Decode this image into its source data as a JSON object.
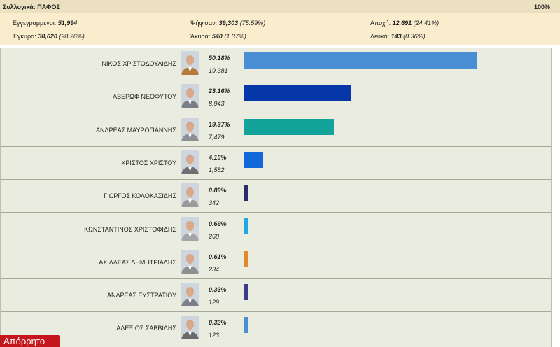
{
  "header": {
    "title": "Συλλογικά: ΠΑΦΟΣ",
    "percent": "100%"
  },
  "stats": {
    "registered_label": "Εγγεγραμμένοι:",
    "registered_value": "51,994",
    "voted_label": "Ψήφισαν:",
    "voted_value": "39,303",
    "voted_pct": "(75.59%)",
    "abstention_label": "Αποχή:",
    "abstention_value": "12,691",
    "abstention_pct": "(24.41%)",
    "valid_label": "Έγκυρα:",
    "valid_value": "38,620",
    "valid_pct": "(98.26%)",
    "invalid_label": "Άκυρα:",
    "invalid_value": "540",
    "invalid_pct": "(1.37%)",
    "blank_label": "Λευκά:",
    "blank_value": "143",
    "blank_pct": "(0.36%)"
  },
  "candidates": [
    {
      "name": "ΝΙΚΟΣ ΧΡΙΣΤΟΔΟΥΛΙΔΗΣ",
      "pct": "50.18%",
      "votes": "19,381",
      "share": 50.18,
      "color": "#4a8fd4",
      "photo_bg": "#b37a3a",
      "icon": "candidate-photo"
    },
    {
      "name": "ΑΒΕΡΩΦ ΝΕΟΦΥΤΟΥ",
      "pct": "23.16%",
      "votes": "8,943",
      "share": 23.16,
      "color": "#0637a8",
      "photo_bg": "#7a7f86",
      "icon": "candidate-photo"
    },
    {
      "name": "ΑΝΔΡΕΑΣ ΜΑΥΡΟΓΙΑΝΝΗΣ",
      "pct": "19.37%",
      "votes": "7,479",
      "share": 19.37,
      "color": "#13a39a",
      "photo_bg": "#8a8f95",
      "icon": "candidate-photo"
    },
    {
      "name": "ΧΡΙΣΤΟΣ ΧΡΙΣΤΟΥ",
      "pct": "4.10%",
      "votes": "1,582",
      "share": 4.1,
      "color": "#1168d8",
      "photo_bg": "#6d6f73",
      "icon": "candidate-photo"
    },
    {
      "name": "ΓΙΩΡΓΟΣ ΚΟΛΟΚΑΣΙΔΗΣ",
      "pct": "0.89%",
      "votes": "342",
      "share": 0.89,
      "color": "#2b2b6e",
      "photo_bg": "#9a9a9a",
      "icon": "candidate-photo"
    },
    {
      "name": "ΚΩΝΣΤΑΝΤΙΝΟΣ ΧΡΙΣΤΟΦΙΔΗΣ",
      "pct": "0.69%",
      "votes": "268",
      "share": 0.69,
      "color": "#1fa8e8",
      "photo_bg": "#a5a5a5",
      "icon": "candidate-photo"
    },
    {
      "name": "ΑΧΙΛΛΕΑΣ ΔΗΜΗΤΡΙΑΔΗΣ",
      "pct": "0.61%",
      "votes": "234",
      "share": 0.61,
      "color": "#e08a2a",
      "photo_bg": "#8f8f8f",
      "icon": "candidate-photo"
    },
    {
      "name": "ΑΝΔΡΕΑΣ ΕΥΣΤΡΑΤΙΟΥ",
      "pct": "0.33%",
      "votes": "129",
      "share": 0.33,
      "color": "#3a3a8a",
      "photo_bg": "#7c8089",
      "icon": "candidate-photo"
    },
    {
      "name": "ΑΛΕΞΙΟΣ ΣΑΒΒΙΔΗΣ",
      "pct": "0.32%",
      "votes": "123",
      "share": 0.32,
      "color": "#4a8fd4",
      "photo_bg": "#6a6a6a",
      "icon": "candidate-photo"
    }
  ],
  "tag": {
    "label": "Απόρρητο"
  }
}
